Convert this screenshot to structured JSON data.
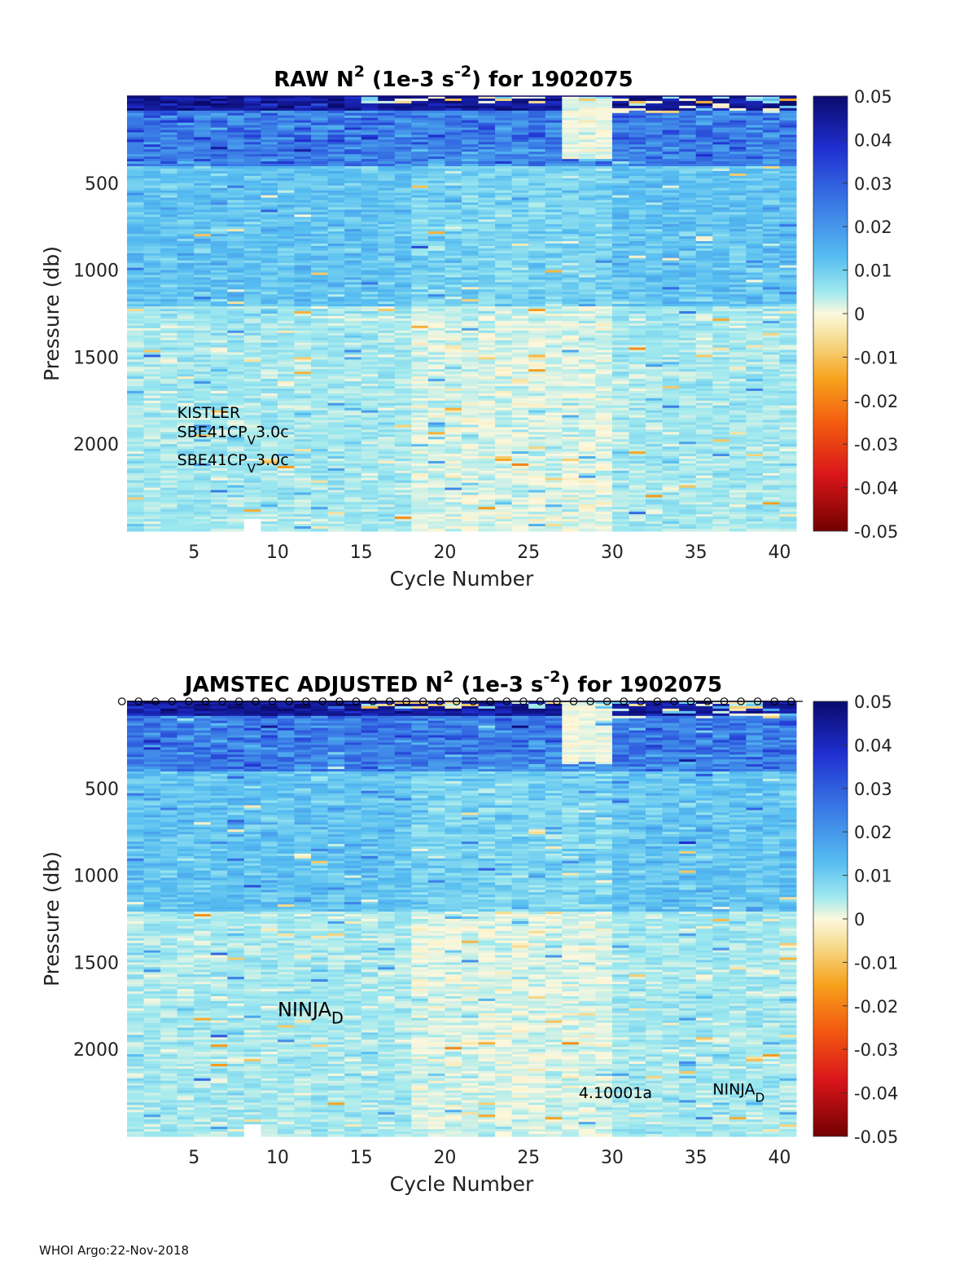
{
  "chart_data": [
    {
      "type": "heatmap",
      "title_main": "RAW N",
      "title_sup": "2",
      "title_units": " (1e-3 s",
      "title_units_sup": "-2",
      "title_rest": ") for 1902075",
      "xlabel": "Cycle Number",
      "ylabel": "Pressure (db)",
      "xlim": [
        1,
        41
      ],
      "ylim": [
        0,
        2500
      ],
      "y_reversed": true,
      "x_ticks": [
        5,
        10,
        15,
        20,
        25,
        30,
        35,
        40
      ],
      "y_ticks": [
        500,
        1000,
        1500,
        2000
      ],
      "colorbar": {
        "min": -0.05,
        "max": 0.05,
        "ticks": [
          "0.05",
          "0.04",
          "0.03",
          "0.02",
          "0.01",
          "0",
          "-0.01",
          "-0.02",
          "-0.03",
          "-0.04",
          "-0.05"
        ]
      },
      "missing_cycles": [
        8
      ],
      "annotations": [
        {
          "text": "KISTLER",
          "sub": "",
          "tail": "",
          "x": 4.0,
          "y": 1850
        },
        {
          "text": "SBE41CP",
          "sub": "V",
          "tail": "3.0c",
          "x": 4.0,
          "y": 1960
        },
        {
          "text": "SBE41CP",
          "sub": "V",
          "tail": "3.0c",
          "x": 4.0,
          "y": 2120
        }
      ],
      "top_markers": false
    },
    {
      "type": "heatmap",
      "title_main": "JAMSTEC  ADJUSTED N",
      "title_sup": "2",
      "title_units": " (1e-3 s",
      "title_units_sup": "-2",
      "title_rest": ") for 1902075",
      "xlabel": "Cycle Number",
      "ylabel": "Pressure (db)",
      "xlim": [
        1,
        41
      ],
      "ylim": [
        0,
        2500
      ],
      "y_reversed": true,
      "x_ticks": [
        5,
        10,
        15,
        20,
        25,
        30,
        35,
        40
      ],
      "y_ticks": [
        500,
        1000,
        1500,
        2000
      ],
      "colorbar": {
        "min": -0.05,
        "max": 0.05,
        "ticks": [
          "0.05",
          "0.04",
          "0.03",
          "0.02",
          "0.01",
          "0",
          "-0.01",
          "-0.02",
          "-0.03",
          "-0.04",
          "-0.05"
        ]
      },
      "missing_cycles": [
        8
      ],
      "annotations": [
        {
          "text": "NINJA",
          "sub": "D",
          "tail": "",
          "x": 10.0,
          "y": 1810,
          "big": true
        },
        {
          "text": "4.10001a",
          "sub": "",
          "tail": "",
          "x": 28.0,
          "y": 2280
        },
        {
          "text": "NINJA",
          "sub": "D",
          "tail": "",
          "x": 36.0,
          "y": 2260
        }
      ],
      "top_markers": true,
      "marker_cycles": [
        1,
        2,
        3,
        4,
        5,
        6,
        7,
        8,
        9,
        10,
        11,
        12,
        13,
        14,
        15,
        16,
        17,
        18,
        19,
        20,
        21,
        22,
        23,
        24,
        25,
        26,
        27,
        28,
        29,
        30,
        31,
        32,
        33,
        34,
        35,
        36,
        37,
        38,
        39,
        40,
        41
      ]
    }
  ],
  "footer": "WHOI Argo:22-Nov-2018"
}
